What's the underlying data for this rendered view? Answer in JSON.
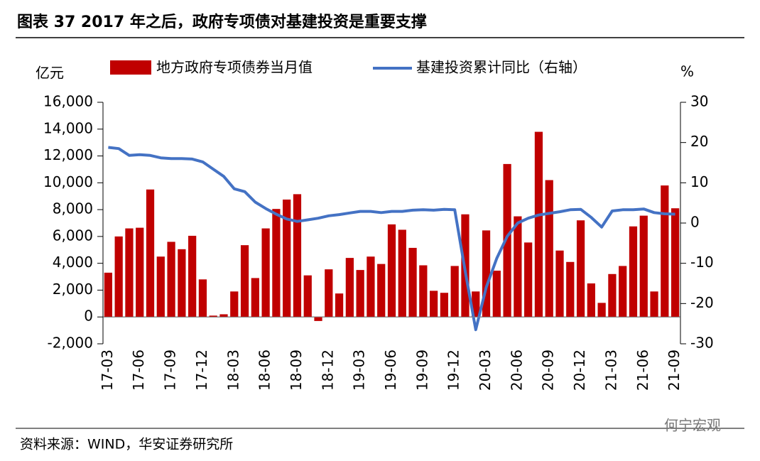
{
  "title": "图表 37 2017 年之后，政府专项债对基建投资是重要支撑",
  "source": "资料来源：WIND，华安证券研究所",
  "watermark": "何宁宏观",
  "chart_data": {
    "type": "bar-line",
    "y_label": "亿元",
    "y2_label": "%",
    "categories": [
      "17-03",
      null,
      null,
      "17-06",
      null,
      null,
      "17-09",
      null,
      null,
      "17-12",
      null,
      null,
      "18-03",
      null,
      null,
      "18-06",
      null,
      null,
      "18-09",
      null,
      null,
      "18-12",
      null,
      null,
      "19-03",
      null,
      null,
      "19-06",
      null,
      null,
      "19-09",
      null,
      null,
      "19-12",
      null,
      null,
      "20-03",
      null,
      null,
      "20-06",
      null,
      null,
      "20-09",
      null,
      null,
      "20-12",
      null,
      null,
      "21-03",
      null,
      null,
      "21-06",
      null,
      null,
      "21-09"
    ],
    "series": [
      {
        "name": "地方政府专项债券当月值",
        "type": "bar",
        "color": "#c00000",
        "values": [
          3300,
          6000,
          6600,
          6650,
          9500,
          4500,
          5600,
          5050,
          6050,
          2800,
          100,
          200,
          1900,
          5350,
          2900,
          6600,
          8050,
          8750,
          9150,
          3100,
          -300,
          3550,
          1750,
          4400,
          3500,
          4500,
          3950,
          6900,
          6500,
          5150,
          3850,
          1950,
          1800,
          3800,
          7650,
          1900,
          6450,
          3450,
          11400,
          7500,
          5550,
          13800,
          10200,
          4950,
          4100,
          7200,
          2500,
          1050,
          3200,
          3800,
          6750,
          7550,
          1900,
          9800,
          8100
        ]
      },
      {
        "name": "基建投资累计同比（右轴）",
        "type": "line",
        "axis": "y2",
        "color": "#4472c4",
        "values": [
          18.8,
          18.5,
          16.8,
          17,
          16.8,
          16.2,
          16,
          16,
          15.9,
          15.2,
          13.4,
          11.6,
          8.5,
          7.8,
          5.2,
          3.6,
          2.2,
          1,
          0.4,
          0.8,
          1.2,
          1.8,
          2.1,
          2.5,
          2.9,
          2.9,
          2.6,
          2.9,
          2.9,
          3.2,
          3.3,
          3.2,
          3.4,
          3.3,
          -12,
          -26.5,
          -16,
          -8.8,
          -3.3,
          0,
          1.2,
          2,
          2.4,
          2.8,
          3.3,
          3.4,
          1.4,
          -1,
          3,
          3.3,
          3.3,
          3.5,
          2.6,
          2.3,
          2.2
        ]
      }
    ],
    "ylim": [
      -2000,
      16000
    ],
    "yticks": [
      {
        "value": -2000,
        "label": "-2,000"
      },
      0,
      {
        "value": 2000,
        "label": "2,000"
      },
      {
        "value": 4000,
        "label": "4,000"
      },
      {
        "value": 6000,
        "label": "6,000"
      },
      {
        "value": 8000,
        "label": "8,000"
      },
      {
        "value": 10000,
        "label": "10,000"
      },
      {
        "value": 12000,
        "label": "12,000"
      },
      {
        "value": 14000,
        "label": "14,000"
      },
      {
        "value": 16000,
        "label": "16,000"
      }
    ],
    "y2lim": [
      -30,
      30
    ],
    "y2ticks": [
      -30,
      -20,
      -10,
      0,
      10,
      20,
      30
    ]
  }
}
